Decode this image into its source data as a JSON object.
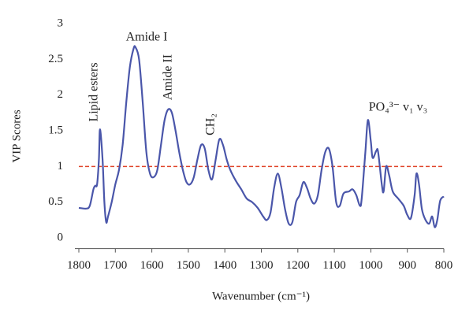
{
  "chart_data": {
    "type": "line",
    "x_label": "Wavenumber (cm⁻¹)",
    "y_label": "VIP Scores",
    "xlim": [
      1800,
      800
    ],
    "xticks": [
      1800,
      1700,
      1600,
      1500,
      1400,
      1300,
      1200,
      1100,
      1000,
      900,
      800
    ],
    "ylim": [
      -0.15,
      3
    ],
    "yticks": [
      0,
      0.5,
      1,
      1.5,
      2,
      2.5,
      3
    ],
    "reference_line": {
      "value": 1,
      "color": "#e0442a"
    },
    "annotations": [
      "Lipid esters",
      "Amide I",
      "Amide II",
      "CH₂",
      "PO₄³⁻ v₁ v₃"
    ],
    "series": [
      {
        "color": "#4a56aa",
        "x": [
          1800,
          1780,
          1770,
          1760,
          1755,
          1750,
          1745,
          1742,
          1735,
          1730,
          1725,
          1720,
          1710,
          1700,
          1690,
          1680,
          1670,
          1660,
          1650,
          1645,
          1635,
          1625,
          1615,
          1605,
          1595,
          1585,
          1575,
          1565,
          1555,
          1545,
          1535,
          1525,
          1515,
          1505,
          1495,
          1485,
          1475,
          1465,
          1455,
          1445,
          1435,
          1425,
          1415,
          1405,
          1395,
          1385,
          1370,
          1355,
          1340,
          1325,
          1310,
          1295,
          1285,
          1275,
          1265,
          1255,
          1245,
          1235,
          1225,
          1215,
          1205,
          1195,
          1185,
          1175,
          1165,
          1155,
          1145,
          1135,
          1125,
          1115,
          1105,
          1095,
          1085,
          1075,
          1060,
          1050,
          1040,
          1030,
          1025,
          1015,
          1008,
          1000,
          995,
          985,
          980,
          970,
          965,
          958,
          950,
          940,
          925,
          910,
          900,
          890,
          880,
          875,
          868,
          860,
          850,
          840,
          832,
          825,
          818,
          810,
          800
        ],
        "values": [
          0.42,
          0.41,
          0.45,
          0.68,
          0.73,
          0.75,
          1.1,
          1.52,
          1.1,
          0.5,
          0.22,
          0.3,
          0.5,
          0.75,
          0.95,
          1.3,
          1.9,
          2.4,
          2.65,
          2.67,
          2.5,
          1.9,
          1.2,
          0.9,
          0.85,
          0.95,
          1.3,
          1.65,
          1.8,
          1.75,
          1.5,
          1.2,
          0.95,
          0.78,
          0.75,
          0.85,
          1.1,
          1.3,
          1.25,
          0.95,
          0.82,
          1.1,
          1.38,
          1.3,
          1.1,
          0.95,
          0.8,
          0.68,
          0.55,
          0.5,
          0.42,
          0.3,
          0.25,
          0.35,
          0.7,
          0.9,
          0.7,
          0.4,
          0.2,
          0.22,
          0.5,
          0.6,
          0.78,
          0.7,
          0.55,
          0.48,
          0.6,
          0.95,
          1.2,
          1.25,
          1.0,
          0.5,
          0.45,
          0.62,
          0.65,
          0.68,
          0.6,
          0.45,
          0.55,
          1.2,
          1.65,
          1.35,
          1.12,
          1.22,
          1.2,
          0.75,
          0.65,
          1.0,
          0.88,
          0.65,
          0.55,
          0.45,
          0.32,
          0.28,
          0.6,
          0.9,
          0.75,
          0.4,
          0.25,
          0.2,
          0.3,
          0.15,
          0.25,
          0.52,
          0.58
        ]
      }
    ]
  }
}
